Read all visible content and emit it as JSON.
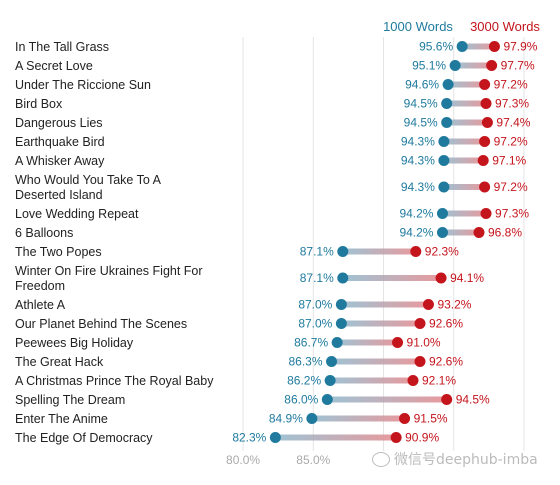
{
  "chart_data": {
    "type": "dumbbell",
    "xlim": [
      78.5,
      101.5
    ],
    "xticks": [
      80,
      85,
      90,
      95,
      100
    ],
    "xtick_labels": [
      "80.0%",
      "85.0%",
      "",
      "",
      ""
    ],
    "grid": true,
    "legend": {
      "placement": "top-right",
      "series_1000": "1000 Words",
      "series_3000": "3000 Words"
    },
    "colors": {
      "series_1000": "#1f7a9e",
      "series_3000": "#c4141c",
      "grid": "#e4e4e4"
    },
    "rows": [
      {
        "label_lines": [
          "In The Tall Grass"
        ],
        "v1000": 95.6,
        "v1000_label": "95.6%",
        "v3000": 97.9,
        "v3000_label": "97.9%"
      },
      {
        "label_lines": [
          "A Secret Love"
        ],
        "v1000": 95.1,
        "v1000_label": "95.1%",
        "v3000": 97.7,
        "v3000_label": "97.7%"
      },
      {
        "label_lines": [
          "Under The Riccione Sun"
        ],
        "v1000": 94.6,
        "v1000_label": "94.6%",
        "v3000": 97.2,
        "v3000_label": "97.2%"
      },
      {
        "label_lines": [
          "Bird Box"
        ],
        "v1000": 94.5,
        "v1000_label": "94.5%",
        "v3000": 97.3,
        "v3000_label": "97.3%"
      },
      {
        "label_lines": [
          "Dangerous Lies"
        ],
        "v1000": 94.5,
        "v1000_label": "94.5%",
        "v3000": 97.4,
        "v3000_label": "97.4%"
      },
      {
        "label_lines": [
          "Earthquake Bird"
        ],
        "v1000": 94.3,
        "v1000_label": "94.3%",
        "v3000": 97.2,
        "v3000_label": "97.2%"
      },
      {
        "label_lines": [
          "A Whisker Away"
        ],
        "v1000": 94.3,
        "v1000_label": "94.3%",
        "v3000": 97.1,
        "v3000_label": "97.1%"
      },
      {
        "label_lines": [
          "Who Would You Take To A",
          "Deserted Island"
        ],
        "v1000": 94.3,
        "v1000_label": "94.3%",
        "v3000": 97.2,
        "v3000_label": "97.2%"
      },
      {
        "label_lines": [
          "Love Wedding Repeat"
        ],
        "v1000": 94.2,
        "v1000_label": "94.2%",
        "v3000": 97.3,
        "v3000_label": "97.3%"
      },
      {
        "label_lines": [
          "6 Balloons"
        ],
        "v1000": 94.2,
        "v1000_label": "94.2%",
        "v3000": 96.8,
        "v3000_label": "96.8%"
      },
      {
        "label_lines": [
          "The Two Popes"
        ],
        "v1000": 87.1,
        "v1000_label": "87.1%",
        "v3000": 92.3,
        "v3000_label": "92.3%"
      },
      {
        "label_lines": [
          "Winter On Fire Ukraines Fight For",
          "Freedom"
        ],
        "v1000": 87.1,
        "v1000_label": "87.1%",
        "v3000": 94.1,
        "v3000_label": "94.1%"
      },
      {
        "label_lines": [
          "Athlete A"
        ],
        "v1000": 87.0,
        "v1000_label": "87.0%",
        "v3000": 93.2,
        "v3000_label": "93.2%"
      },
      {
        "label_lines": [
          "Our Planet Behind The Scenes"
        ],
        "v1000": 87.0,
        "v1000_label": "87.0%",
        "v3000": 92.6,
        "v3000_label": "92.6%"
      },
      {
        "label_lines": [
          "Peewees Big Holiday"
        ],
        "v1000": 86.7,
        "v1000_label": "86.7%",
        "v3000": 91.0,
        "v3000_label": "91.0%"
      },
      {
        "label_lines": [
          "The Great Hack"
        ],
        "v1000": 86.3,
        "v1000_label": "86.3%",
        "v3000": 92.6,
        "v3000_label": "92.6%"
      },
      {
        "label_lines": [
          "A Christmas Prince The Royal Baby"
        ],
        "v1000": 86.2,
        "v1000_label": "86.2%",
        "v3000": 92.1,
        "v3000_label": "92.1%"
      },
      {
        "label_lines": [
          "Spelling The Dream"
        ],
        "v1000": 86.0,
        "v1000_label": "86.0%",
        "v3000": 94.5,
        "v3000_label": "94.5%"
      },
      {
        "label_lines": [
          "Enter The Anime"
        ],
        "v1000": 84.9,
        "v1000_label": "84.9%",
        "v3000": 91.5,
        "v3000_label": "91.5%"
      },
      {
        "label_lines": [
          "The Edge Of Democracy"
        ],
        "v1000": 82.3,
        "v1000_label": "82.3%",
        "v3000": 90.9,
        "v3000_label": "90.9%"
      }
    ]
  },
  "watermark": {
    "text": "微信号deephub-imba"
  }
}
